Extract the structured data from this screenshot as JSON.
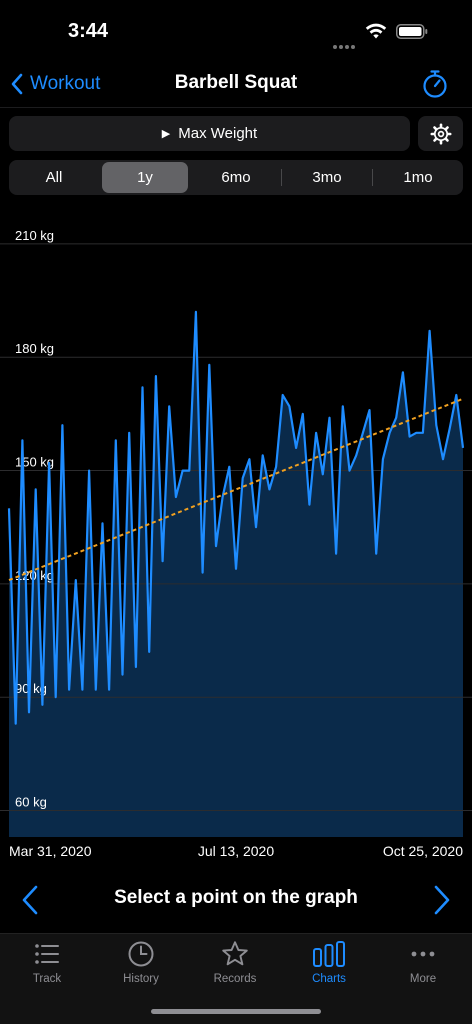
{
  "status": {
    "time": "3:44"
  },
  "nav": {
    "back_label": "Workout",
    "title": "Barbell Squat"
  },
  "metric": {
    "label": "Max Weight"
  },
  "ranges": [
    "All",
    "1y",
    "6mo",
    "3mo",
    "1mo"
  ],
  "selected_range": "1y",
  "colors": {
    "accent": "#1e8cff",
    "area": "#0a2a4a",
    "trend": "#f0a020"
  },
  "chart_data": {
    "type": "area",
    "y_ticks": [
      "60 kg",
      "90 kg",
      "120 kg",
      "150 kg",
      "180 kg",
      "210 kg"
    ],
    "ylim": [
      53,
      215
    ],
    "x_labels": [
      "Mar 31, 2020",
      "Jul 13, 2020",
      "Oct 25, 2020"
    ],
    "values": [
      140,
      83,
      158,
      86,
      145,
      88,
      152,
      90,
      162,
      92,
      121,
      92,
      150,
      92,
      136,
      92,
      158,
      96,
      160,
      98,
      172,
      102,
      175,
      126,
      167,
      143,
      150,
      150,
      192,
      123,
      178,
      130,
      143,
      151,
      124,
      148,
      153,
      135,
      154,
      145,
      151,
      170,
      167,
      156,
      165,
      141,
      160,
      149,
      164,
      128,
      167,
      150,
      154,
      160,
      166,
      128,
      153,
      160,
      164,
      176,
      159,
      160,
      160,
      187,
      162,
      153,
      161,
      170,
      156
    ],
    "trend": [
      121,
      169
    ],
    "grid": true
  },
  "point_prompt": "Select a point on the graph",
  "tabs": [
    {
      "label": "Track",
      "icon": "list-icon"
    },
    {
      "label": "History",
      "icon": "clock-icon"
    },
    {
      "label": "Records",
      "icon": "star-icon"
    },
    {
      "label": "Charts",
      "icon": "bar-chart-icon"
    },
    {
      "label": "More",
      "icon": "ellipsis-icon"
    }
  ],
  "active_tab": "Charts"
}
